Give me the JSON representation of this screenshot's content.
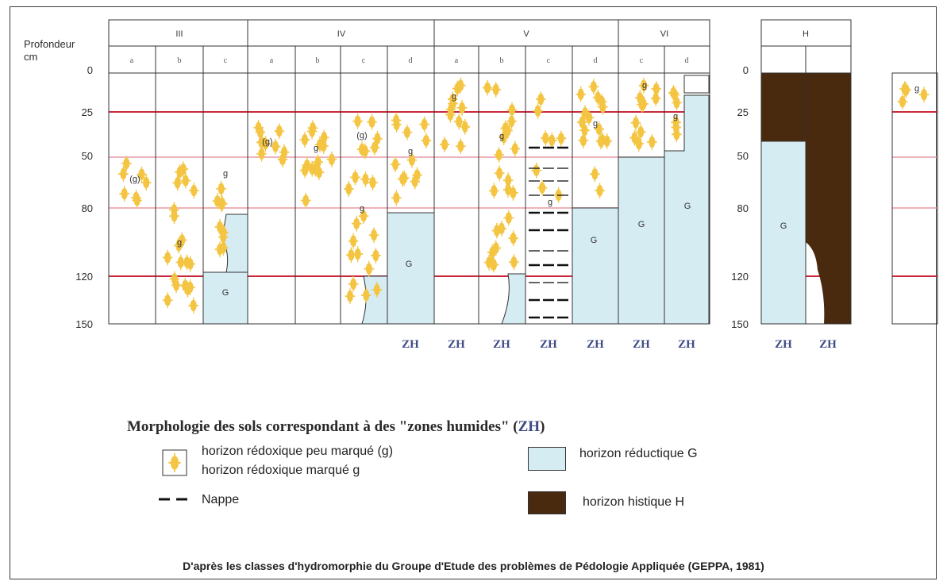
{
  "depth_axis": {
    "title_line1": "Profondeur",
    "title_line2": "cm",
    "ticks": [
      "0",
      "25",
      "50",
      "80",
      "120",
      "150"
    ]
  },
  "classes": [
    "III",
    "IV",
    "V",
    "VI"
  ],
  "histic_class": "H",
  "sub_labels": {
    "III": [
      "a",
      "b",
      "c"
    ],
    "IV": [
      "a",
      "b",
      "c",
      "d"
    ],
    "V": [
      "a",
      "b",
      "c",
      "d"
    ],
    "VI": [
      "c",
      "d"
    ]
  },
  "zh_label": "ZH",
  "horizon_labels": {
    "g_weak": "(g)",
    "g_strong": "g",
    "reductic": "G"
  },
  "caption": {
    "text": "Morphologie des sols correspondant à des \"zones humides\" (",
    "zh": "ZH",
    "close": ")"
  },
  "legend": {
    "redox_weak": "horizon rédoxique peu marqué (g)",
    "redox_strong": "horizon rédoxique marqué g",
    "water_table": "Nappe",
    "reductic": "horizon réductique G",
    "histic": "horizon histique H"
  },
  "colors": {
    "reductic": "#d6ecf3",
    "histic": "#4a2a0f",
    "redox_mottle": "#f4c542",
    "depth_line_red": "#c8283a",
    "depth_line_pink": "#e79aa4",
    "zh_text": "#3e4a86"
  },
  "footer": "D'après les classes d'hydromorphie du Groupe d'Etude des problèmes de Pédologie Appliquée (GEPPA, 1981)"
}
